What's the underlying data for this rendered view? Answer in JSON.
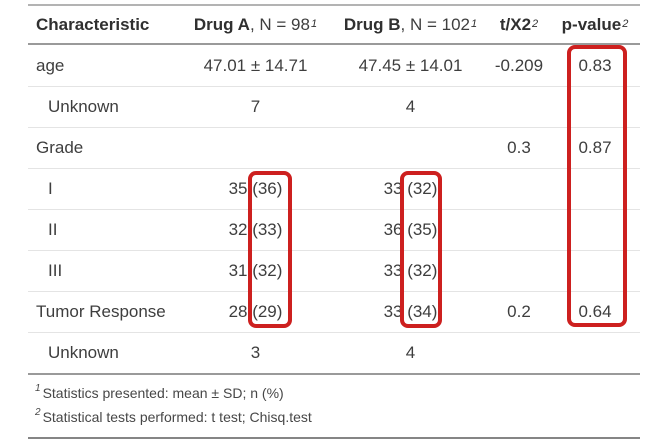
{
  "chart_data": {
    "type": "table",
    "header": {
      "characteristic": "Characteristic",
      "drug_a": {
        "name": "Drug A",
        "n": ", N = 98",
        "sup": "1"
      },
      "drug_b": {
        "name": "Drug B",
        "n": ", N = 102",
        "sup": "1"
      },
      "stat": {
        "name": "t/X2",
        "sup": "2"
      },
      "p": {
        "name": "p-value",
        "sup": "2"
      }
    },
    "rows": [
      {
        "label": "age",
        "drug_a": "47.01 ± 14.71",
        "drug_b": "47.45 ± 14.01",
        "stat": "-0.209",
        "p": "0.83"
      },
      {
        "label": "Unknown",
        "drug_a": "7",
        "drug_b": "4",
        "stat": "",
        "p": ""
      },
      {
        "label": "Grade",
        "drug_a": "",
        "drug_b": "",
        "stat": "0.3",
        "p": "0.87"
      },
      {
        "label": "I",
        "drug_a": "35 (36)",
        "drug_b": "33 (32)",
        "stat": "",
        "p": ""
      },
      {
        "label": "II",
        "drug_a": "32 (33)",
        "drug_b": "36 (35)",
        "stat": "",
        "p": ""
      },
      {
        "label": "III",
        "drug_a": "31 (32)",
        "drug_b": "33 (32)",
        "stat": "",
        "p": ""
      },
      {
        "label": "Tumor Response",
        "drug_a": "28 (29)",
        "drug_b": "33 (34)",
        "stat": "0.2",
        "p": "0.64"
      },
      {
        "label": "Unknown",
        "drug_a": "3",
        "drug_b": "4",
        "stat": "",
        "p": ""
      }
    ],
    "footnotes": [
      {
        "marker": "1",
        "text": "Statistics presented: mean ± SD; n (%)"
      },
      {
        "marker": "2",
        "text": "Statistical tests performed: t test; Chisq.test"
      }
    ],
    "annotations": {
      "highlight_color": "#cd201f",
      "highlights": [
        {
          "target": "Drug A percentages",
          "values": [
            "(36)",
            "(33)",
            "(32)",
            "(29)"
          ]
        },
        {
          "target": "Drug B percentages",
          "values": [
            "(32)",
            "(35)",
            "(32)",
            "(34)"
          ]
        },
        {
          "target": "p-value column",
          "values": [
            "0.83",
            "0.87",
            "0.64"
          ]
        }
      ]
    }
  }
}
